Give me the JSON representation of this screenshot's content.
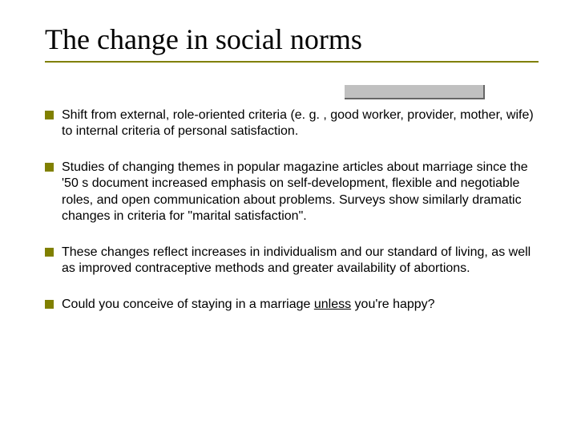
{
  "slide": {
    "title": "The change in social norms",
    "title_font_family": "Times New Roman",
    "title_fontsize": 36,
    "title_color": "#000000",
    "underline_color": "#808000",
    "shadow_box_color": "#c0c0c0",
    "body_font_family": "Arial",
    "body_fontsize": 16,
    "body_color": "#000000",
    "bullet_color": "#808000",
    "background_color": "#ffffff",
    "bullets": [
      {
        "text": "Shift from external, role-oriented criteria (e. g. , good worker, provider, mother, wife) to internal criteria of personal satisfaction."
      },
      {
        "text": "Studies of changing themes in popular magazine articles about marriage since the '50 s document increased emphasis on self-development, flexible and negotiable roles, and open communication about problems. Surveys show similarly dramatic changes in criteria for \"marital satisfaction\"."
      },
      {
        "text": "These changes reflect increases in individualism and our standard of living, as well as improved contraceptive methods and greater availability of abortions."
      },
      {
        "text_pre": "Could you conceive of staying in a marriage ",
        "text_underlined": "unless",
        "text_post": " you're happy?"
      }
    ]
  }
}
